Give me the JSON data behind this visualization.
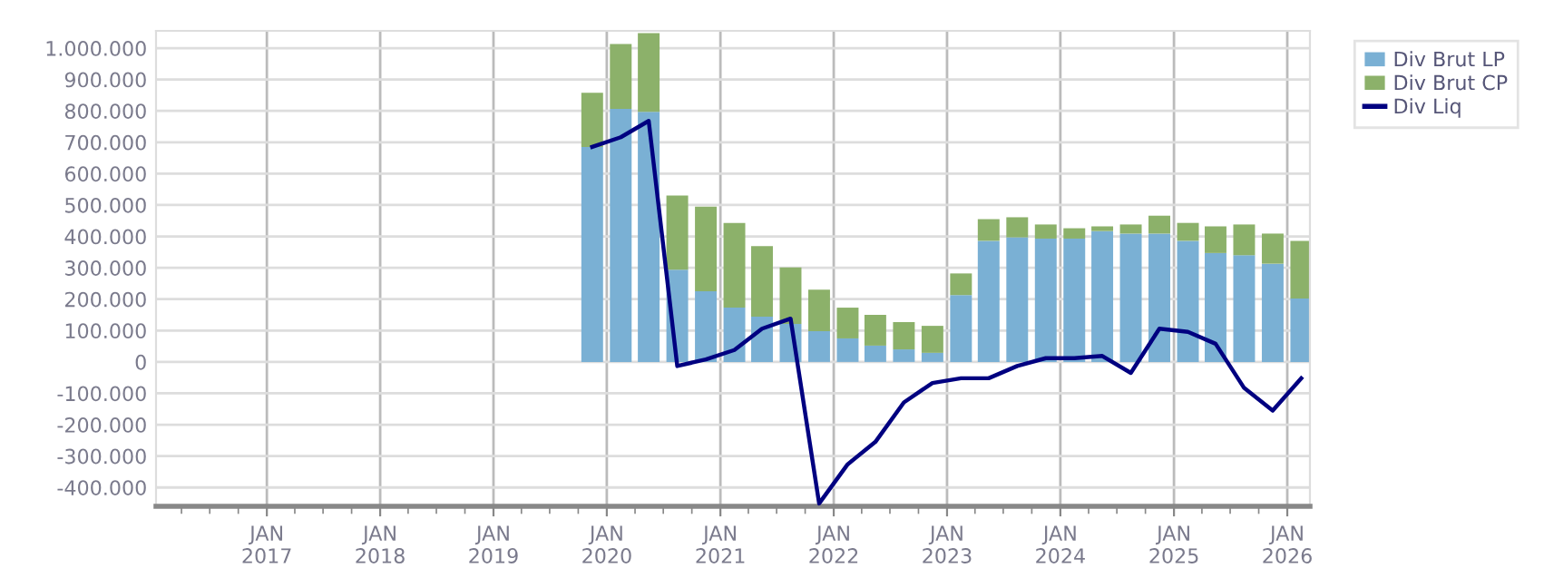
{
  "chart_data": {
    "type": "bar",
    "stacked": true,
    "x": [
      "2019-11-15",
      "2020-02-15",
      "2020-05-15",
      "2020-08-15",
      "2020-11-15",
      "2021-02-15",
      "2021-05-15",
      "2021-08-15",
      "2021-11-15",
      "2022-02-15",
      "2022-05-15",
      "2022-08-15",
      "2022-11-15",
      "2023-02-15",
      "2023-05-15",
      "2023-08-15",
      "2023-11-15",
      "2024-02-15",
      "2024-05-15",
      "2024-08-15",
      "2024-11-15",
      "2025-02-15",
      "2025-05-15",
      "2025-08-15",
      "2025-11-15",
      "2026-02-15"
    ],
    "series": [
      {
        "name": "Div Brut LP",
        "color": "#7ab0d4",
        "values": [
          685000,
          806000,
          797000,
          294000,
          225000,
          173000,
          144000,
          121000,
          98000,
          75000,
          52000,
          40000,
          29000,
          213000,
          386000,
          397000,
          393000,
          393000,
          417000,
          409000,
          409000,
          386000,
          347000,
          340000,
          313000,
          202000
        ]
      },
      {
        "name": "Div Brut CP",
        "color": "#8cb16a",
        "values": [
          173000,
          207000,
          251000,
          236000,
          270000,
          270000,
          225000,
          180000,
          132000,
          98000,
          98000,
          87000,
          86000,
          69000,
          69000,
          64000,
          45000,
          33000,
          15000,
          29000,
          57000,
          57000,
          85000,
          98000,
          96000,
          184000
        ]
      },
      {
        "name": "Div Liq",
        "type": "line",
        "color": "#000080",
        "values": [
          685000,
          716000,
          768000,
          -13000,
          8000,
          38000,
          106000,
          138000,
          -451000,
          -326000,
          -255000,
          -129000,
          -67000,
          -52000,
          -52000,
          -13000,
          12000,
          12000,
          19000,
          -35000,
          106000,
          96000,
          58000,
          -83000,
          -155000,
          -52000
        ]
      }
    ],
    "xlim": [
      "2016-01-10",
      "2026-03-15"
    ],
    "xticks": [
      {
        "value": "2017-01-01",
        "label": "JAN\n2017"
      },
      {
        "value": "2018-01-01",
        "label": "JAN\n2018"
      },
      {
        "value": "2019-01-01",
        "label": "JAN\n2019"
      },
      {
        "value": "2020-01-01",
        "label": "JAN\n2020"
      },
      {
        "value": "2021-01-01",
        "label": "JAN\n2021"
      },
      {
        "value": "2022-01-01",
        "label": "JAN\n2022"
      },
      {
        "value": "2023-01-01",
        "label": "JAN\n2023"
      },
      {
        "value": "2024-01-01",
        "label": "JAN\n2024"
      },
      {
        "value": "2025-01-01",
        "label": "JAN\n2025"
      },
      {
        "value": "2026-01-01",
        "label": "JAN\n2026"
      },
      {
        "value": "2016-04-01",
        "label": null
      },
      {
        "value": "2016-07-01",
        "label": null
      },
      {
        "value": "2016-10-01",
        "label": null
      },
      {
        "value": "2017-04-01",
        "label": null
      },
      {
        "value": "2017-07-01",
        "label": null
      },
      {
        "value": "2017-10-01",
        "label": null
      },
      {
        "value": "2018-04-01",
        "label": null
      },
      {
        "value": "2018-07-01",
        "label": null
      },
      {
        "value": "2018-10-01",
        "label": null
      },
      {
        "value": "2019-04-01",
        "label": null
      },
      {
        "value": "2019-07-01",
        "label": null
      },
      {
        "value": "2019-10-01",
        "label": null
      },
      {
        "value": "2020-04-01",
        "label": null
      },
      {
        "value": "2020-07-01",
        "label": null
      },
      {
        "value": "2020-10-01",
        "label": null
      },
      {
        "value": "2021-04-01",
        "label": null
      },
      {
        "value": "2021-07-01",
        "label": null
      },
      {
        "value": "2021-10-01",
        "label": null
      },
      {
        "value": "2022-04-01",
        "label": null
      },
      {
        "value": "2022-07-01",
        "label": null
      },
      {
        "value": "2022-10-01",
        "label": null
      },
      {
        "value": "2023-04-01",
        "label": null
      },
      {
        "value": "2023-07-01",
        "label": null
      },
      {
        "value": "2023-10-01",
        "label": null
      },
      {
        "value": "2024-04-01",
        "label": null
      },
      {
        "value": "2024-07-01",
        "label": null
      },
      {
        "value": "2024-10-01",
        "label": null
      },
      {
        "value": "2025-04-01",
        "label": null
      },
      {
        "value": "2025-07-01",
        "label": null
      },
      {
        "value": "2025-10-01",
        "label": null
      }
    ],
    "ylim": [
      -460000,
      1055000
    ],
    "yticks": [
      {
        "value": -400000,
        "label": "-400.000"
      },
      {
        "value": -300000,
        "label": "-300.000"
      },
      {
        "value": -200000,
        "label": "-200.000"
      },
      {
        "value": -100000,
        "label": "-100.000"
      },
      0,
      {
        "value": 100000,
        "label": "100.000"
      },
      {
        "value": 200000,
        "label": "200.000"
      },
      {
        "value": 300000,
        "label": "300.000"
      },
      {
        "value": 400000,
        "label": "400.000"
      },
      {
        "value": 500000,
        "label": "500.000"
      },
      {
        "value": 600000,
        "label": "600.000"
      },
      {
        "value": 700000,
        "label": "700.000"
      },
      {
        "value": 800000,
        "label": "800.000"
      },
      {
        "value": 900000,
        "label": "900.000"
      },
      {
        "value": 1000000,
        "label": "1.000.000"
      }
    ],
    "grid": true,
    "legend": "top right"
  }
}
